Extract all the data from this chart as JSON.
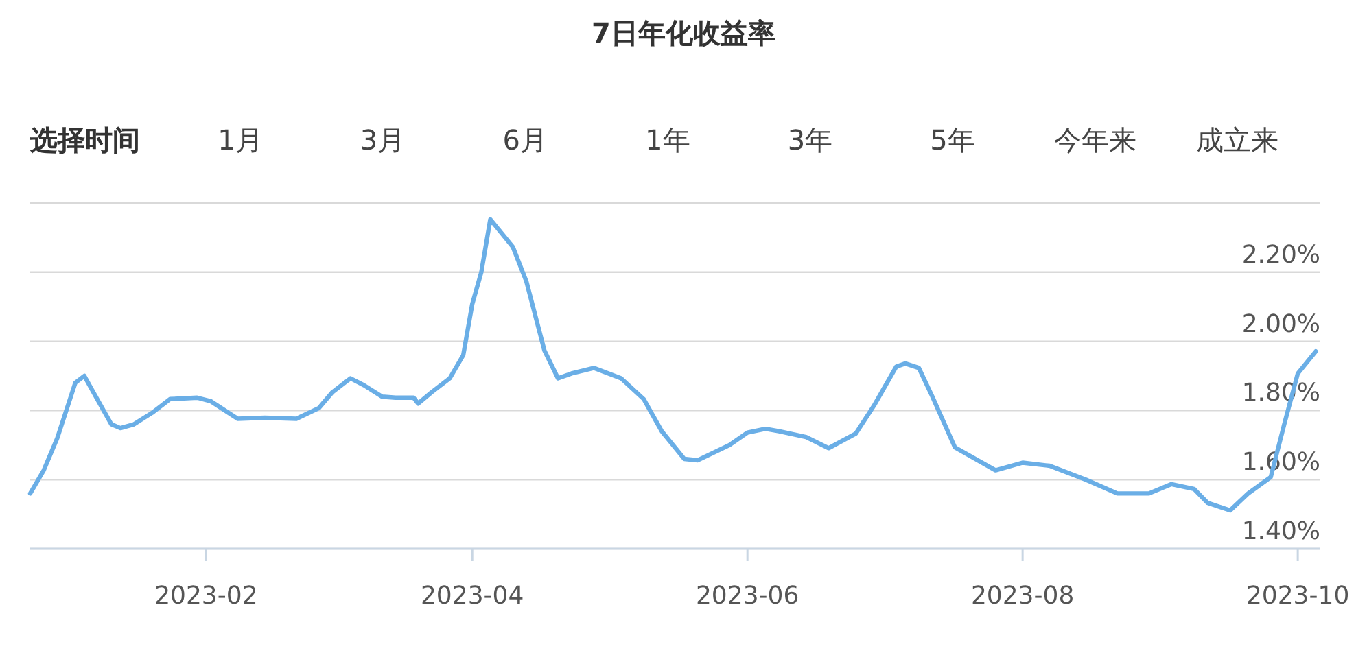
{
  "chart_data": {
    "type": "line",
    "title": "7日年化收益率",
    "annotations": [
      "选择时间",
      "1月",
      "3月",
      "6月",
      "1年",
      "3年",
      "5年",
      "今年来",
      "成立来"
    ],
    "x": [
      "2022-12-24",
      "2022-12-27",
      "2022-12-30",
      "2023-01-03",
      "2023-01-05",
      "2023-01-07",
      "2023-01-11",
      "2023-01-13",
      "2023-01-16",
      "2023-01-20",
      "2023-01-24",
      "2023-01-30",
      "2023-02-02",
      "2023-02-08",
      "2023-02-14",
      "2023-02-21",
      "2023-02-26",
      "2023-03-01",
      "2023-03-05",
      "2023-03-08",
      "2023-03-12",
      "2023-03-15",
      "2023-03-19",
      "2023-03-20",
      "2023-03-23",
      "2023-03-27",
      "2023-03-30",
      "2023-04-01",
      "2023-04-03",
      "2023-04-05",
      "2023-04-10",
      "2023-04-13",
      "2023-04-17",
      "2023-04-20",
      "2023-04-23",
      "2023-04-28",
      "2023-05-04",
      "2023-05-09",
      "2023-05-13",
      "2023-05-18",
      "2023-05-21",
      "2023-05-28",
      "2023-06-01",
      "2023-06-05",
      "2023-06-08",
      "2023-06-14",
      "2023-06-19",
      "2023-06-25",
      "2023-06-29",
      "2023-07-04",
      "2023-07-06",
      "2023-07-09",
      "2023-07-12",
      "2023-07-17",
      "2023-07-26",
      "2023-08-01",
      "2023-08-07",
      "2023-08-15",
      "2023-08-22",
      "2023-08-29",
      "2023-09-03",
      "2023-09-08",
      "2023-09-11",
      "2023-09-16",
      "2023-09-20",
      "2023-09-25",
      "2023-09-28",
      "2023-10-01",
      "2023-10-05"
    ],
    "series": [
      {
        "color": "#6aaee6",
        "values": [
          1.56,
          1.627,
          1.72,
          1.88,
          1.9,
          1.853,
          1.76,
          1.749,
          1.76,
          1.793,
          1.833,
          1.837,
          1.827,
          1.776,
          1.779,
          1.776,
          1.807,
          1.853,
          1.893,
          1.873,
          1.84,
          1.837,
          1.837,
          1.82,
          1.853,
          1.893,
          1.96,
          2.108,
          2.2,
          2.353,
          2.273,
          2.173,
          1.973,
          1.893,
          1.907,
          1.923,
          1.893,
          1.833,
          1.74,
          1.66,
          1.656,
          1.7,
          1.736,
          1.747,
          1.74,
          1.723,
          1.691,
          1.733,
          1.813,
          1.927,
          1.936,
          1.923,
          1.84,
          1.693,
          1.627,
          1.649,
          1.64,
          1.6,
          1.56,
          1.56,
          1.587,
          1.573,
          1.533,
          1.511,
          1.56,
          1.607,
          1.76,
          1.907,
          1.971
        ]
      }
    ],
    "xlim": [
      "2022-12-24",
      "2023-10-06"
    ],
    "xticks": [
      {
        "value": "2023-02-01",
        "label": "2023-02"
      },
      {
        "value": "2023-04-01",
        "label": "2023-04"
      },
      {
        "value": "2023-06-01",
        "label": "2023-06"
      },
      {
        "value": "2023-08-01",
        "label": "2023-08"
      },
      {
        "value": "2023-10-01",
        "label": "2023-10"
      }
    ],
    "ylim": [
      1.4,
      2.4
    ],
    "yticks": [
      {
        "value": 1.4,
        "label": "1.40%"
      },
      {
        "value": 1.6,
        "label": "1.60%"
      },
      {
        "value": 1.8,
        "label": "1.80%"
      },
      {
        "value": 2.0,
        "label": "2.00%"
      },
      {
        "value": 2.2,
        "label": "2.20%"
      },
      {
        "value": 2.4,
        "label": null
      }
    ],
    "grid": "y"
  }
}
